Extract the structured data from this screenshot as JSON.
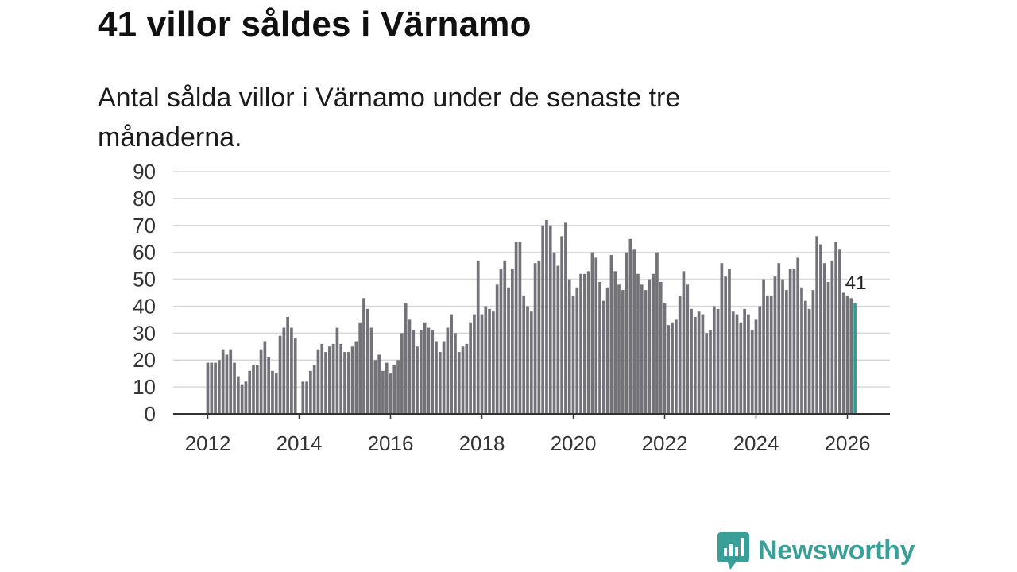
{
  "title": "41 villor såldes i Värnamo",
  "subtitle": "Antal sålda villor i Värnamo under de senaste tre månaderna.",
  "brand": {
    "name": "Newsworthy",
    "icon": "newsworthy-logo-icon"
  },
  "colors": {
    "bar": "#737278",
    "highlight": "#2a9d96",
    "grid": "#d9d9d9",
    "axis": "#333333",
    "brand": "#3a9e99"
  },
  "chart_data": {
    "type": "bar",
    "title": "Antal sålda villor i Värnamo",
    "xlabel": "",
    "ylabel": "",
    "ylim": [
      0,
      90
    ],
    "y_ticks": [
      0,
      10,
      20,
      30,
      40,
      50,
      60,
      70,
      80,
      90
    ],
    "x_ticks": [
      "2012",
      "2014",
      "2016",
      "2018",
      "2020",
      "2022",
      "2024",
      "2026"
    ],
    "grid": true,
    "start": "2012-01",
    "frequency": "monthly",
    "values": [
      19,
      19,
      19,
      20,
      24,
      22,
      24,
      19,
      14,
      11,
      12,
      16,
      18,
      18,
      24,
      27,
      21,
      16,
      15,
      29,
      32,
      36,
      32,
      28,
      0,
      12,
      12,
      16,
      18,
      24,
      26,
      23,
      25,
      26,
      32,
      26,
      23,
      23,
      25,
      27,
      34,
      43,
      39,
      32,
      20,
      22,
      16,
      19,
      15,
      18,
      20,
      30,
      41,
      35,
      31,
      25,
      31,
      34,
      32,
      31,
      27,
      23,
      27,
      32,
      37,
      30,
      23,
      25,
      26,
      34,
      37,
      57,
      37,
      40,
      39,
      38,
      48,
      54,
      57,
      47,
      54,
      64,
      64,
      44,
      40,
      38,
      56,
      57,
      70,
      72,
      70,
      60,
      55,
      66,
      71,
      50,
      44,
      47,
      52,
      52,
      53,
      60,
      58,
      49,
      42,
      47,
      59,
      53,
      48,
      46,
      60,
      65,
      61,
      52,
      48,
      46,
      50,
      52,
      60,
      49,
      41,
      33,
      34,
      35,
      44,
      53,
      48,
      39,
      36,
      38,
      37,
      30,
      31,
      40,
      39,
      56,
      51,
      54,
      38,
      37,
      34,
      39,
      37,
      31,
      35,
      40,
      50,
      44,
      44,
      51,
      56,
      50,
      46,
      54,
      54,
      58,
      47,
      42,
      39,
      46,
      66,
      63,
      56,
      49,
      57,
      64,
      61,
      45,
      44,
      43,
      41
    ],
    "highlight": {
      "label": "41",
      "value": 41,
      "period": "2026-03"
    }
  }
}
